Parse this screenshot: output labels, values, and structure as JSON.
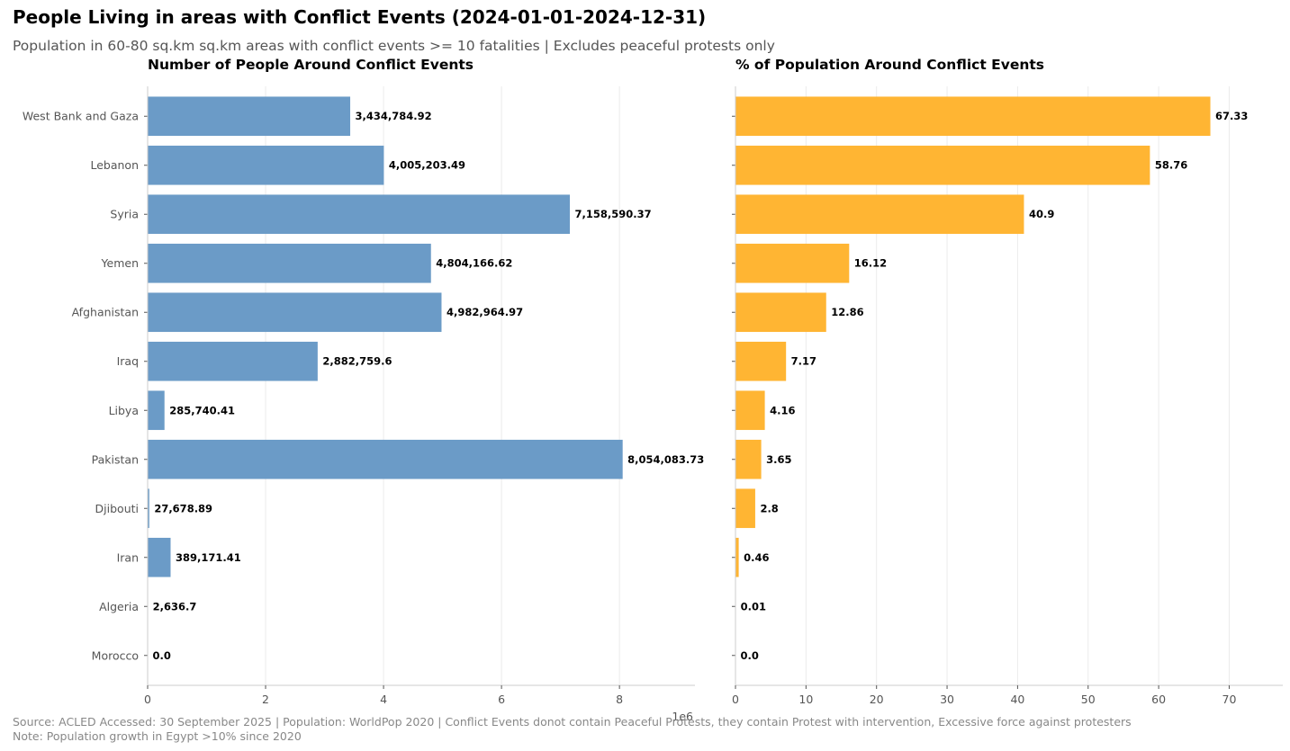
{
  "title": "People Living in areas with Conflict Events (2024-01-01-2024-12-31)",
  "subtitle": "Population in 60-80 sq.km sq.km areas with conflict events >= 10 fatalities | Excludes peaceful protests only",
  "footer": {
    "line1": "Source: ACLED Accessed: 30 September 2025 | Population: WorldPop 2020 | Conflict Events donot contain Peaceful Protests, they contain Protest with intervention, Excessive force against protesters",
    "line2": "Note: Population growth in Egypt >10% since 2020"
  },
  "chart_data": [
    {
      "type": "bar",
      "orientation": "horizontal",
      "title": "Number of People Around Conflict Events",
      "categories": [
        "West Bank and Gaza",
        "Lebanon",
        "Syria",
        "Yemen",
        "Afghanistan",
        "Iraq",
        "Libya",
        "Pakistan",
        "Djibouti",
        "Iran",
        "Algeria",
        "Morocco"
      ],
      "values": [
        3434784.92,
        4005203.49,
        7158590.37,
        4804166.62,
        4982964.97,
        2882759.6,
        285740.41,
        8054083.73,
        27678.89,
        389171.41,
        2636.7,
        0.0
      ],
      "value_labels": [
        "3,434,784.92",
        "4,005,203.49",
        "7,158,590.37",
        "4,804,166.62",
        "4,982,964.97",
        "2,882,759.6",
        "285,740.41",
        "8,054,083.73",
        "27,678.89",
        "389,171.41",
        "2,636.7",
        "0.0"
      ],
      "xlim": [
        0,
        9280000
      ],
      "xticks": [
        0,
        2000000,
        4000000,
        6000000,
        8000000
      ],
      "xtick_labels": [
        "0",
        "2",
        "4",
        "6",
        "8"
      ],
      "axis_offset_label": "1e6",
      "color": "#6b9bc7",
      "grid": "x"
    },
    {
      "type": "bar",
      "orientation": "horizontal",
      "title": "% of Population Around Conflict Events",
      "categories": [
        "West Bank and Gaza",
        "Lebanon",
        "Syria",
        "Yemen",
        "Afghanistan",
        "Iraq",
        "Libya",
        "Pakistan",
        "Djibouti",
        "Iran",
        "Algeria",
        "Morocco"
      ],
      "values": [
        67.33,
        58.76,
        40.9,
        16.12,
        12.86,
        7.17,
        4.16,
        3.65,
        2.8,
        0.46,
        0.01,
        0.0
      ],
      "value_labels": [
        "67.33",
        "58.76",
        "40.9",
        "16.12",
        "12.86",
        "7.17",
        "4.16",
        "3.65",
        "2.8",
        "0.46",
        "0.01",
        "0.0"
      ],
      "xlim": [
        0,
        77.6
      ],
      "xticks": [
        0,
        10,
        20,
        30,
        40,
        50,
        60,
        70
      ],
      "xtick_labels": [
        "0",
        "10",
        "20",
        "30",
        "40",
        "50",
        "60",
        "70"
      ],
      "color": "#ffb533",
      "grid": "x"
    }
  ]
}
